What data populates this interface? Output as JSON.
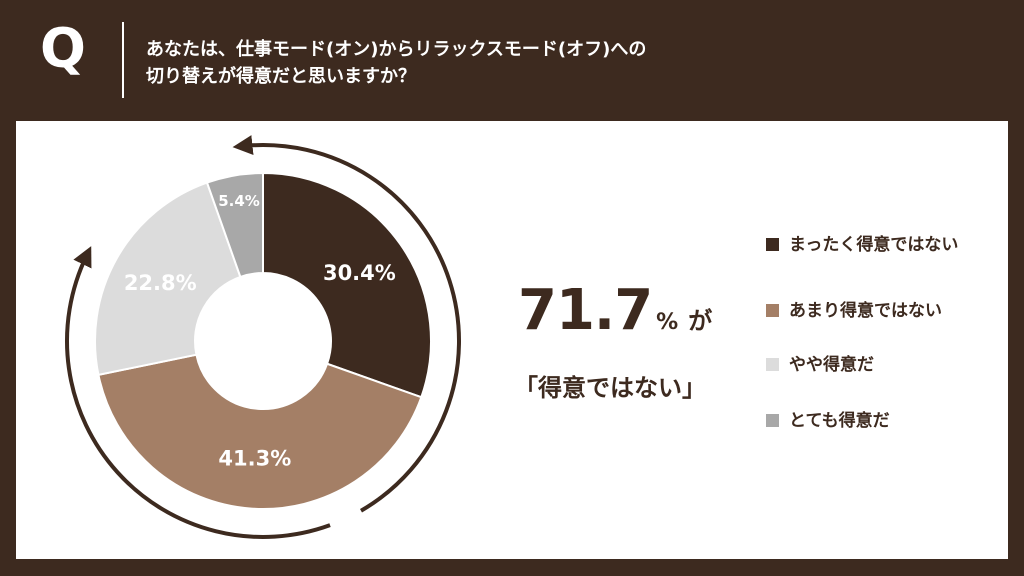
{
  "question": {
    "letter": "Q",
    "line1": "あなたは、仕事モード(オン)からリラックスモード(オフ)への",
    "line2": "切り替えが得意だと思いますか？"
  },
  "chart_data": {
    "type": "pie",
    "categories": [
      "まったく得意ではない",
      "あまり得意ではない",
      "やや得意だ",
      "とても得意だ"
    ],
    "values": [
      30.4,
      41.3,
      22.8,
      5.4
    ],
    "value_labels": [
      "30.4%",
      "41.3%",
      "22.8%",
      "5.4%"
    ],
    "colors": [
      "#3d2a1f",
      "#a47f66",
      "#dcdcdc",
      "#a8a8a8"
    ],
    "label_colors": [
      "#ffffff",
      "#ffffff",
      "#ffffff",
      "#ffffff"
    ],
    "donut": true,
    "legend_position": "right"
  },
  "summary": {
    "number": "71.7",
    "percent": "%",
    "particle": "が",
    "quote": "「得意ではない」"
  }
}
